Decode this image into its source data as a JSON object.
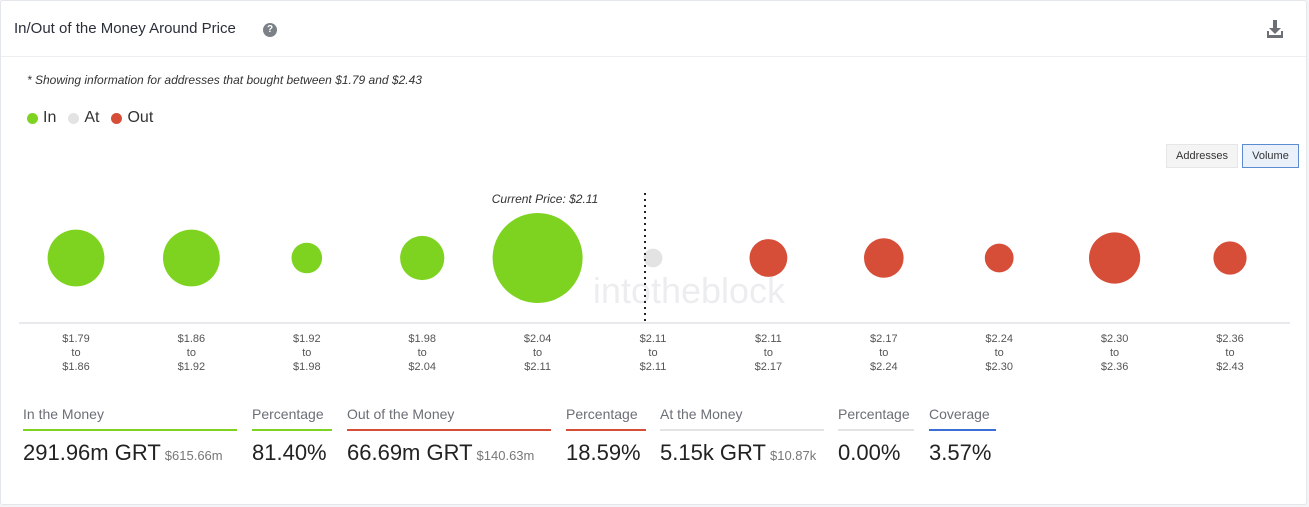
{
  "header": {
    "title": "In/Out of the Money Around Price",
    "help_icon": "question-circle-icon",
    "download_icon": "download-icon"
  },
  "note": "* Showing information for addresses that bought between $1.79 and $2.43",
  "legend": [
    {
      "label": "In",
      "color": "#7ed321"
    },
    {
      "label": "At",
      "color": "#e3e3e3"
    },
    {
      "label": "Out",
      "color": "#d64d38"
    }
  ],
  "toggles": {
    "addresses": "Addresses",
    "volume": "Volume",
    "active": "volume"
  },
  "watermark": "intotheblock",
  "chart_data": {
    "type": "scatter",
    "title": "",
    "encoding": "bubble size = relative volume",
    "current_price_label": "Current Price: $2.11",
    "current_price": 2.11,
    "colors": {
      "in": "#7ed321",
      "at": "#e3e3e3",
      "out": "#d64d38"
    },
    "buckets": [
      {
        "from": "$1.79",
        "to": "$1.86",
        "status": "in",
        "size": 0.63
      },
      {
        "from": "$1.86",
        "to": "$1.92",
        "status": "in",
        "size": 0.63
      },
      {
        "from": "$1.92",
        "to": "$1.98",
        "status": "in",
        "size": 0.34
      },
      {
        "from": "$1.98",
        "to": "$2.04",
        "status": "in",
        "size": 0.49
      },
      {
        "from": "$2.04",
        "to": "$2.11",
        "status": "in",
        "size": 1.0
      },
      {
        "from": "$2.11",
        "to": "$2.11",
        "status": "at",
        "size": 0.21
      },
      {
        "from": "$2.11",
        "to": "$2.17",
        "status": "out",
        "size": 0.42
      },
      {
        "from": "$2.17",
        "to": "$2.24",
        "status": "out",
        "size": 0.44
      },
      {
        "from": "$2.24",
        "to": "$2.30",
        "status": "out",
        "size": 0.32
      },
      {
        "from": "$2.30",
        "to": "$2.36",
        "status": "out",
        "size": 0.57
      },
      {
        "from": "$2.36",
        "to": "$2.43",
        "status": "out",
        "size": 0.37
      }
    ],
    "tick_to": "to"
  },
  "metrics": {
    "in_money": {
      "label": "In the Money",
      "value": "291.96m GRT",
      "sub": "$615.66m",
      "color": "#7ed321"
    },
    "in_pct": {
      "label": "Percentage",
      "value": "81.40%",
      "color": "#7ed321"
    },
    "out_money": {
      "label": "Out of the Money",
      "value": "66.69m GRT",
      "sub": "$140.63m",
      "color": "#d64d38"
    },
    "out_pct": {
      "label": "Percentage",
      "value": "18.59%",
      "color": "#d64d38"
    },
    "at_money": {
      "label": "At the Money",
      "value": "5.15k GRT",
      "sub": "$10.87k",
      "color": "#e3e3e3"
    },
    "at_pct": {
      "label": "Percentage",
      "value": "0.00%",
      "color": "#e3e3e3"
    },
    "coverage": {
      "label": "Coverage",
      "value": "3.57%",
      "color": "#3b6fd6"
    }
  }
}
